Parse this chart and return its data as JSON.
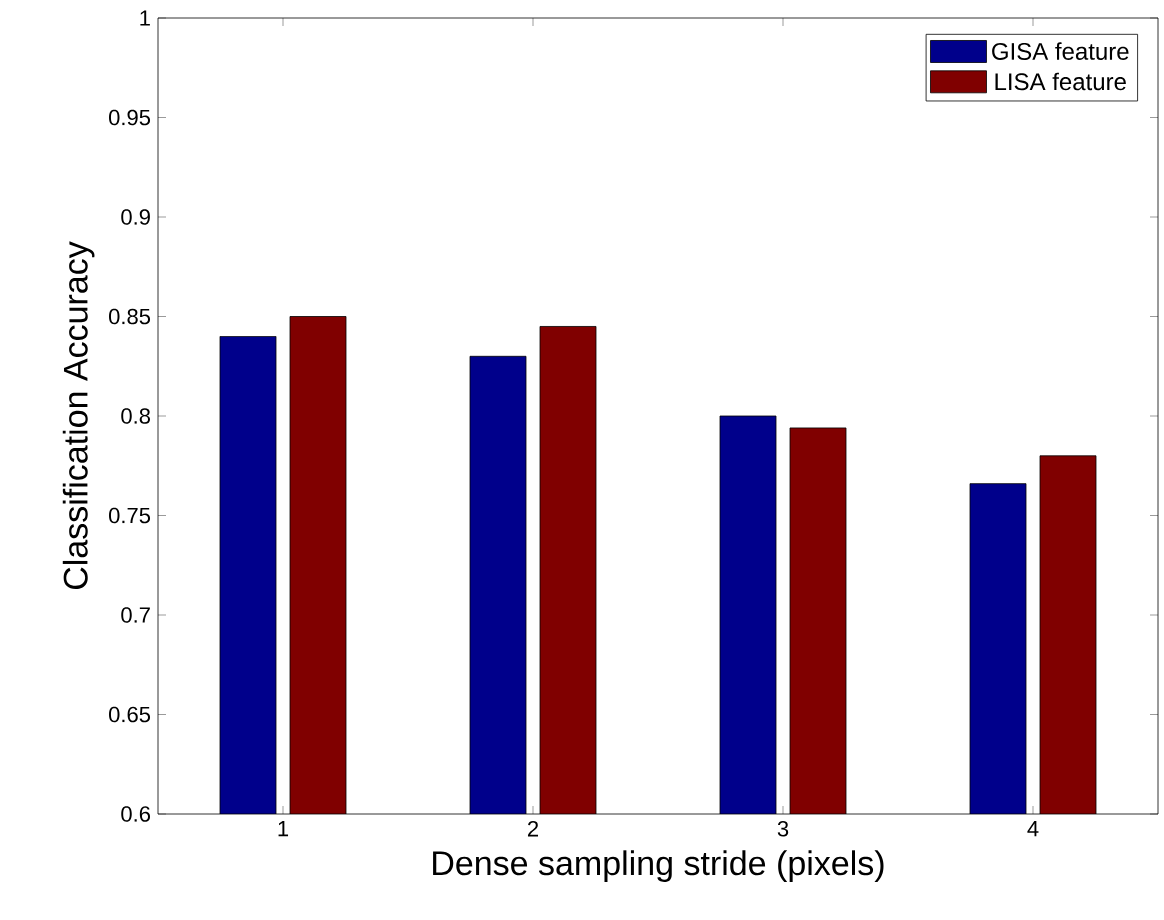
{
  "chart_data": {
    "type": "bar",
    "xlabel": "Dense sampling stride (pixels)",
    "ylabel": "Classification Accuracy",
    "categories": [
      "1",
      "2",
      "3",
      "4"
    ],
    "series": [
      {
        "name": "GISA feature",
        "color": "#00008b",
        "values": [
          0.84,
          0.83,
          0.8,
          0.766
        ]
      },
      {
        "name": "LISA feature",
        "color": "#800000",
        "values": [
          0.85,
          0.845,
          0.794,
          0.78
        ]
      }
    ],
    "ylim": [
      0.6,
      1
    ],
    "yticks": [
      0.6,
      0.65,
      0.7,
      0.75,
      0.8,
      0.85,
      0.9,
      0.95,
      1
    ],
    "grid": false,
    "legend": "top right"
  }
}
